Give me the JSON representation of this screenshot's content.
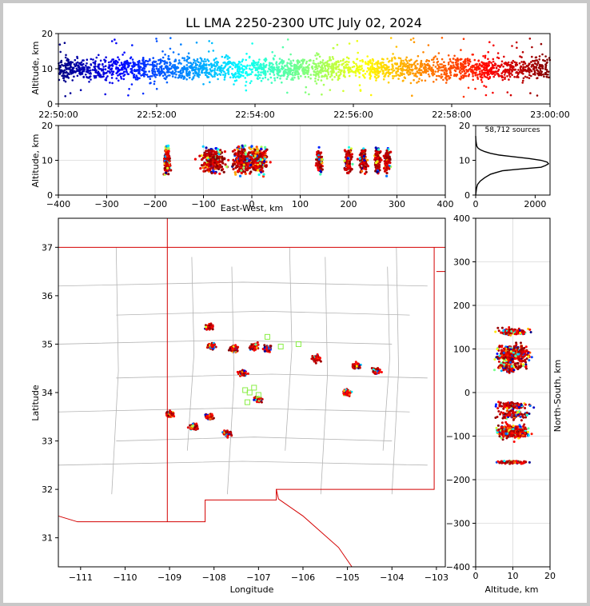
{
  "title": "LL LMA 2250-2300 UTC July 02, 2024",
  "colors": {
    "state_border": "#d40000",
    "county_border": "#b4b4b4",
    "grid": "#d8d8d8",
    "station_marker": "#88ee44",
    "window_frame": "#c8c8c8"
  },
  "chart_data": [
    {
      "id": "time-height",
      "type": "scatter",
      "ylabel": "Altitude, km",
      "ylim": [
        0,
        20
      ],
      "yticks": [
        "0",
        "10",
        "20"
      ],
      "x_ticks": [
        "22:50:00",
        "22:52:00",
        "22:54:00",
        "22:56:00",
        "22:58:00",
        "23:00:00"
      ],
      "color_by": "time",
      "colormap": "jet"
    },
    {
      "id": "ew-height",
      "type": "scatter",
      "xlabel": "East-West, km",
      "ylabel": "Altitude, km",
      "xlim": [
        -400,
        400
      ],
      "ylim": [
        0,
        20
      ],
      "xticks": [
        "−400",
        "−300",
        "−200",
        "−100",
        "0",
        "100",
        "200",
        "300",
        "400"
      ],
      "yticks": [
        "0",
        "10",
        "20"
      ],
      "clusters_ew_km": [
        -175,
        -80,
        -20,
        15,
        140,
        200,
        230,
        260,
        280
      ]
    },
    {
      "id": "altitude-histogram",
      "type": "line",
      "annotation": "58,712 sources",
      "xlim": [
        0,
        2500
      ],
      "ylim": [
        0,
        20
      ],
      "xticks": [
        "0",
        "2000"
      ],
      "yticks": [
        "0",
        "10",
        "20"
      ],
      "profile": [
        [
          0,
          0
        ],
        [
          30,
          2
        ],
        [
          60,
          3
        ],
        [
          150,
          4
        ],
        [
          300,
          5
        ],
        [
          500,
          6
        ],
        [
          700,
          6.5
        ],
        [
          900,
          7
        ],
        [
          1500,
          7.5
        ],
        [
          2200,
          8
        ],
        [
          2350,
          8.5
        ],
        [
          2450,
          9
        ],
        [
          2400,
          9.5
        ],
        [
          2200,
          10
        ],
        [
          1800,
          10.5
        ],
        [
          1300,
          11
        ],
        [
          800,
          11.5
        ],
        [
          500,
          12
        ],
        [
          300,
          12.5
        ],
        [
          160,
          13
        ],
        [
          80,
          13.5
        ],
        [
          40,
          14
        ],
        [
          20,
          15
        ],
        [
          5,
          16
        ],
        [
          0,
          17
        ]
      ]
    },
    {
      "id": "plan-view-map",
      "type": "scatter",
      "xlabel": "Longitude",
      "ylabel": "Latitude",
      "xlim": [
        -111.5,
        -102.8
      ],
      "ylim": [
        30.4,
        37.6
      ],
      "xticks": [
        "−111",
        "−110",
        "−109",
        "−108",
        "−107",
        "−106",
        "−105",
        "−104",
        "−103"
      ],
      "yticks": [
        "31",
        "32",
        "33",
        "34",
        "35",
        "36",
        "37"
      ],
      "storm_cells": [
        {
          "lon": -108.1,
          "lat": 35.35
        },
        {
          "lon": -108.05,
          "lat": 34.95
        },
        {
          "lon": -107.55,
          "lat": 34.9
        },
        {
          "lon": -107.1,
          "lat": 34.95
        },
        {
          "lon": -106.8,
          "lat": 34.9
        },
        {
          "lon": -107.35,
          "lat": 34.4
        },
        {
          "lon": -107.0,
          "lat": 33.85
        },
        {
          "lon": -108.1,
          "lat": 33.5
        },
        {
          "lon": -107.7,
          "lat": 33.15
        },
        {
          "lon": -108.45,
          "lat": 33.3
        },
        {
          "lon": -109.0,
          "lat": 33.55
        },
        {
          "lon": -105.7,
          "lat": 34.7
        },
        {
          "lon": -104.8,
          "lat": 34.55
        },
        {
          "lon": -104.35,
          "lat": 34.45
        },
        {
          "lon": -105.0,
          "lat": 34.0
        }
      ]
    },
    {
      "id": "height-ns",
      "type": "scatter",
      "xlabel": "Altitude, km",
      "ylabel": "North-South, km",
      "xlim": [
        0,
        20
      ],
      "ylim": [
        -400,
        400
      ],
      "xticks": [
        "0",
        "10",
        "20"
      ],
      "yticks": [
        "−400",
        "−300",
        "−200",
        "−100",
        "0",
        "100",
        "200",
        "300",
        "400"
      ],
      "clusters_ns_km": [
        140,
        90,
        60,
        -30,
        -50,
        -90,
        -160
      ]
    }
  ]
}
